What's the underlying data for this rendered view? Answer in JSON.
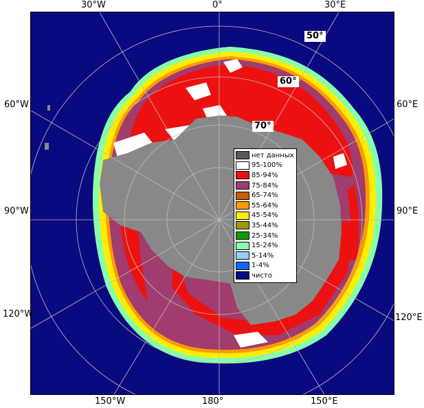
{
  "lon_labels": {
    "top": [
      "30°W",
      "0°",
      "30°E"
    ],
    "left": [
      "60°W",
      "90°W",
      "120°W"
    ],
    "right": [
      "60°E",
      "90°E",
      "120°E"
    ],
    "bottom": [
      "150°W",
      "180°",
      "150°E"
    ]
  },
  "lat_labels": [
    "50°",
    "60°",
    "70°"
  ],
  "legend": [
    {
      "label": "нет данных",
      "color": "#5a5a5a"
    },
    {
      "label": "95-100%",
      "color": "#ffffff"
    },
    {
      "label": "85-94%",
      "color": "#ee1111"
    },
    {
      "label": "75-84%",
      "color": "#a03c6e"
    },
    {
      "label": "65-74%",
      "color": "#cc5a00"
    },
    {
      "label": "55-64%",
      "color": "#ff9900"
    },
    {
      "label": "45-54%",
      "color": "#ffee00"
    },
    {
      "label": "35-44%",
      "color": "#999900"
    },
    {
      "label": "25-34%",
      "color": "#119911"
    },
    {
      "label": "15-24%",
      "color": "#88ffaa"
    },
    {
      "label": "5-14%",
      "color": "#99ccff"
    },
    {
      "label": "1-4%",
      "color": "#1166ff"
    },
    {
      "label": "чисто",
      "color": "#0a0a80"
    }
  ],
  "colors": {
    "ocean": "#0a0a80",
    "land": "#888888",
    "grid": "#bbbbbb"
  }
}
